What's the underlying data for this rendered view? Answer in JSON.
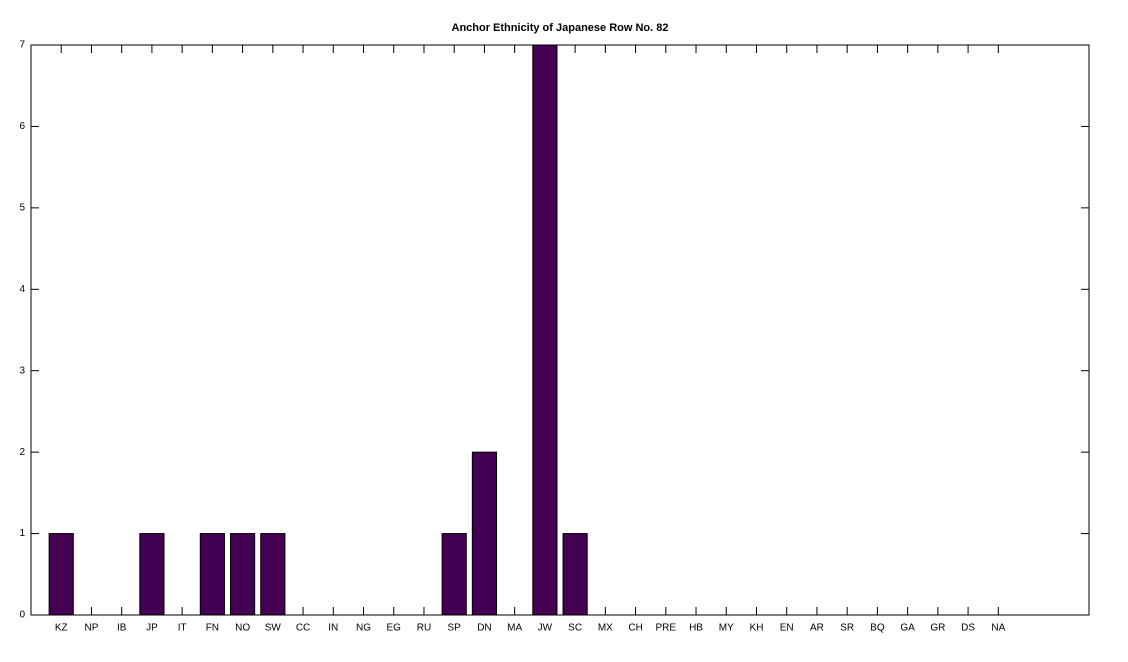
{
  "chart_data": {
    "type": "bar",
    "title": "Anchor Ethnicity of Japanese Row No. 82",
    "categories": [
      "KZ",
      "NP",
      "IB",
      "JP",
      "IT",
      "FN",
      "NO",
      "SW",
      "CC",
      "IN",
      "NG",
      "EG",
      "RU",
      "SP",
      "DN",
      "MA",
      "JW",
      "SC",
      "MX",
      "CH",
      "PRE",
      "HB",
      "MY",
      "KH",
      "EN",
      "AR",
      "SR",
      "BQ",
      "GA",
      "GR",
      "DS",
      "NA"
    ],
    "values": [
      1,
      0,
      0,
      1,
      0,
      1,
      1,
      1,
      0,
      0,
      0,
      0,
      0,
      1,
      2,
      0,
      7,
      1,
      0,
      0,
      0,
      0,
      0,
      0,
      0,
      0,
      0,
      0,
      0,
      0,
      0,
      0
    ],
    "color": "#440154",
    "xlim": [
      0,
      35
    ],
    "ylim": [
      0,
      7
    ],
    "yticks": [
      0,
      1,
      2,
      3,
      4,
      5,
      6,
      7
    ]
  }
}
